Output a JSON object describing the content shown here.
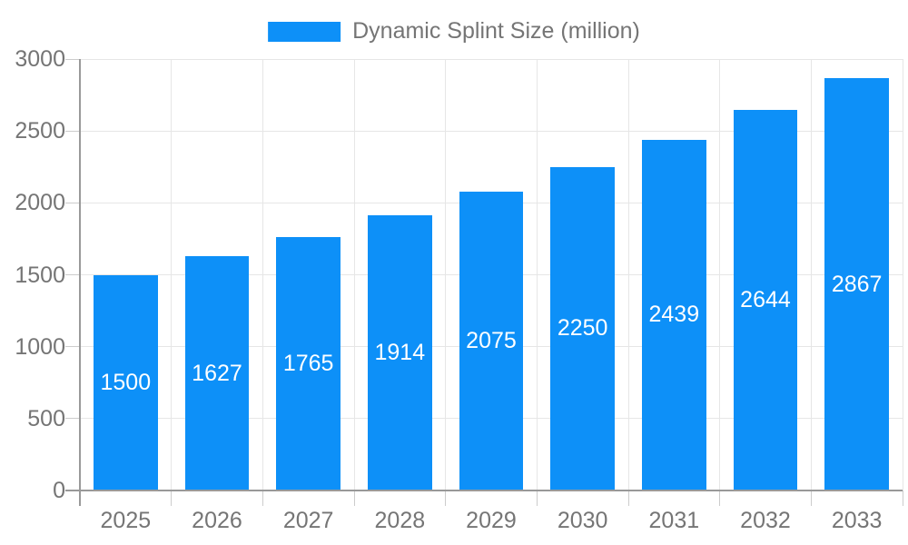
{
  "chart_data": {
    "type": "bar",
    "title": "Dynamic Splint Size (million)",
    "categories": [
      "2025",
      "2026",
      "2027",
      "2028",
      "2029",
      "2030",
      "2031",
      "2032",
      "2033"
    ],
    "values": [
      1500,
      1627,
      1765,
      1914,
      2075,
      2250,
      2439,
      2644,
      2867
    ],
    "xlabel": "",
    "ylabel": "",
    "ylim": [
      0,
      3000
    ],
    "yticks": [
      0,
      500,
      1000,
      1500,
      2000,
      2500,
      3000
    ],
    "grid": true,
    "legend_position": "top-center",
    "value_label_position": "inside-center",
    "colors": {
      "bar": "#0d90f8",
      "axis": "#999999",
      "grid": "#e6e6e6",
      "tick": "#cccccc",
      "text": "#757575",
      "value_label": "#ffffff",
      "background": "#ffffff"
    }
  }
}
